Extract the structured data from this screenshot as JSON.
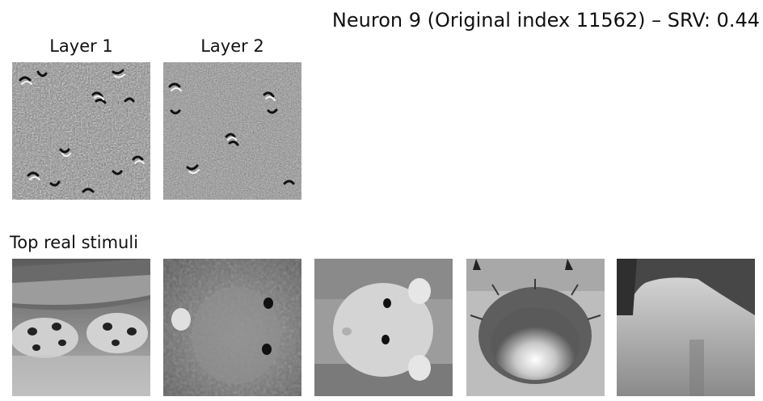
{
  "figure": {
    "title": "Neuron 9 (Original index 11562) – SRV: 0.44"
  },
  "feature_visualizations": [
    {
      "label": "Layer 1",
      "description_icon": "gabor-texture-image"
    },
    {
      "label": "Layer 2",
      "description_icon": "gabor-texture-image"
    }
  ],
  "stimuli_row": {
    "label": "Top real stimuli",
    "images": [
      {
        "icon": "ladybug-photo"
      },
      {
        "icon": "hamster-photo"
      },
      {
        "icon": "hamster-face-photo"
      },
      {
        "icon": "flower-center-photo"
      },
      {
        "icon": "leaf-edge-photo"
      }
    ]
  }
}
